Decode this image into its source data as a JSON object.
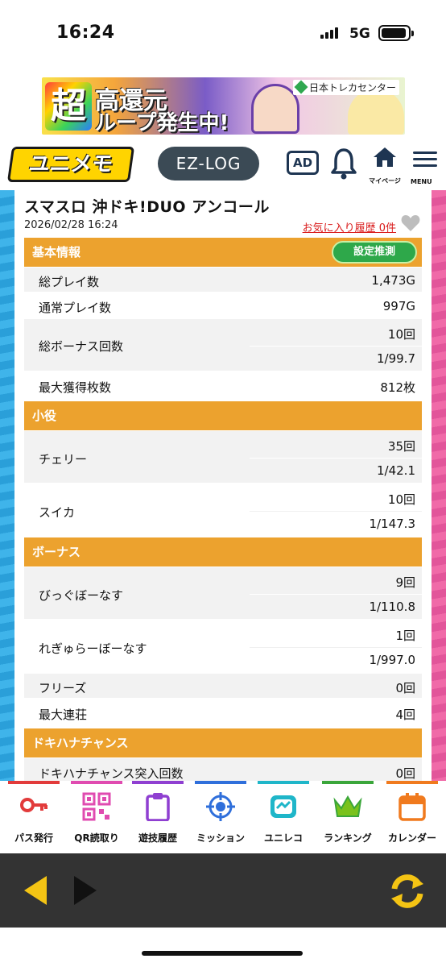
{
  "status_bar": {
    "time": "16:24",
    "network": "5G"
  },
  "banner": {
    "big_char": "超",
    "line1": "高還元",
    "line2": "ループ発生中!",
    "brand": "日本トレカセンター"
  },
  "header": {
    "logo": "ユニメモ",
    "ezlog": "EZ-LOG",
    "ad": "AD",
    "mypage": "マイページ",
    "menu": "MENU"
  },
  "page": {
    "title": "スマスロ 沖ドキ!DUO アンコール",
    "datetime": "2026/02/28 16:24",
    "favorite": "お気に入り履歴 0件"
  },
  "sections": {
    "basic": {
      "title": "基本情報",
      "estimate_button": "設定推測",
      "rows": [
        {
          "label": "総プレイ数",
          "value": "1,473G"
        },
        {
          "label": "通常プレイ数",
          "value": "997G"
        },
        {
          "label": "総ボーナス回数",
          "value": "10回",
          "sub": "1/99.7"
        },
        {
          "label": "最大獲得枚数",
          "value": "812枚"
        }
      ]
    },
    "koyaku": {
      "title": "小役",
      "rows": [
        {
          "label": "チェリー",
          "value": "35回",
          "sub": "1/42.1"
        },
        {
          "label": "スイカ",
          "value": "10回",
          "sub": "1/147.3"
        }
      ]
    },
    "bonus": {
      "title": "ボーナス",
      "rows": [
        {
          "label": "びっぐぼーなす",
          "value": "9回",
          "sub": "1/110.8"
        },
        {
          "label": "れぎゅらーぼーなす",
          "value": "1回",
          "sub": "1/997.0"
        },
        {
          "label": "フリーズ",
          "value": "0回"
        },
        {
          "label": "最大連荘",
          "value": "4回"
        }
      ]
    },
    "dokihana": {
      "title": "ドキハナチャンス",
      "rows": [
        {
          "label": "ドキハナチャンス突入回数",
          "value": "0回"
        }
      ]
    }
  },
  "tabbar": [
    {
      "label": "パス発行",
      "color": "#e23b3b"
    },
    {
      "label": "QR読取り",
      "color": "#e04bb0"
    },
    {
      "label": "遊技履歴",
      "color": "#8f3fd1"
    },
    {
      "label": "ミッション",
      "color": "#2f6fdb"
    },
    {
      "label": "ユニレコ",
      "color": "#1fb6c9"
    },
    {
      "label": "ランキング",
      "color": "#3aa63a"
    },
    {
      "label": "カレンダー",
      "color": "#f07a1e"
    }
  ],
  "colors": {
    "section": "#eca22e",
    "estimate": "#2ea84a",
    "favorite": "#d91a1a",
    "nav_bg": "#333333",
    "back_arrow": "#f4c414"
  }
}
